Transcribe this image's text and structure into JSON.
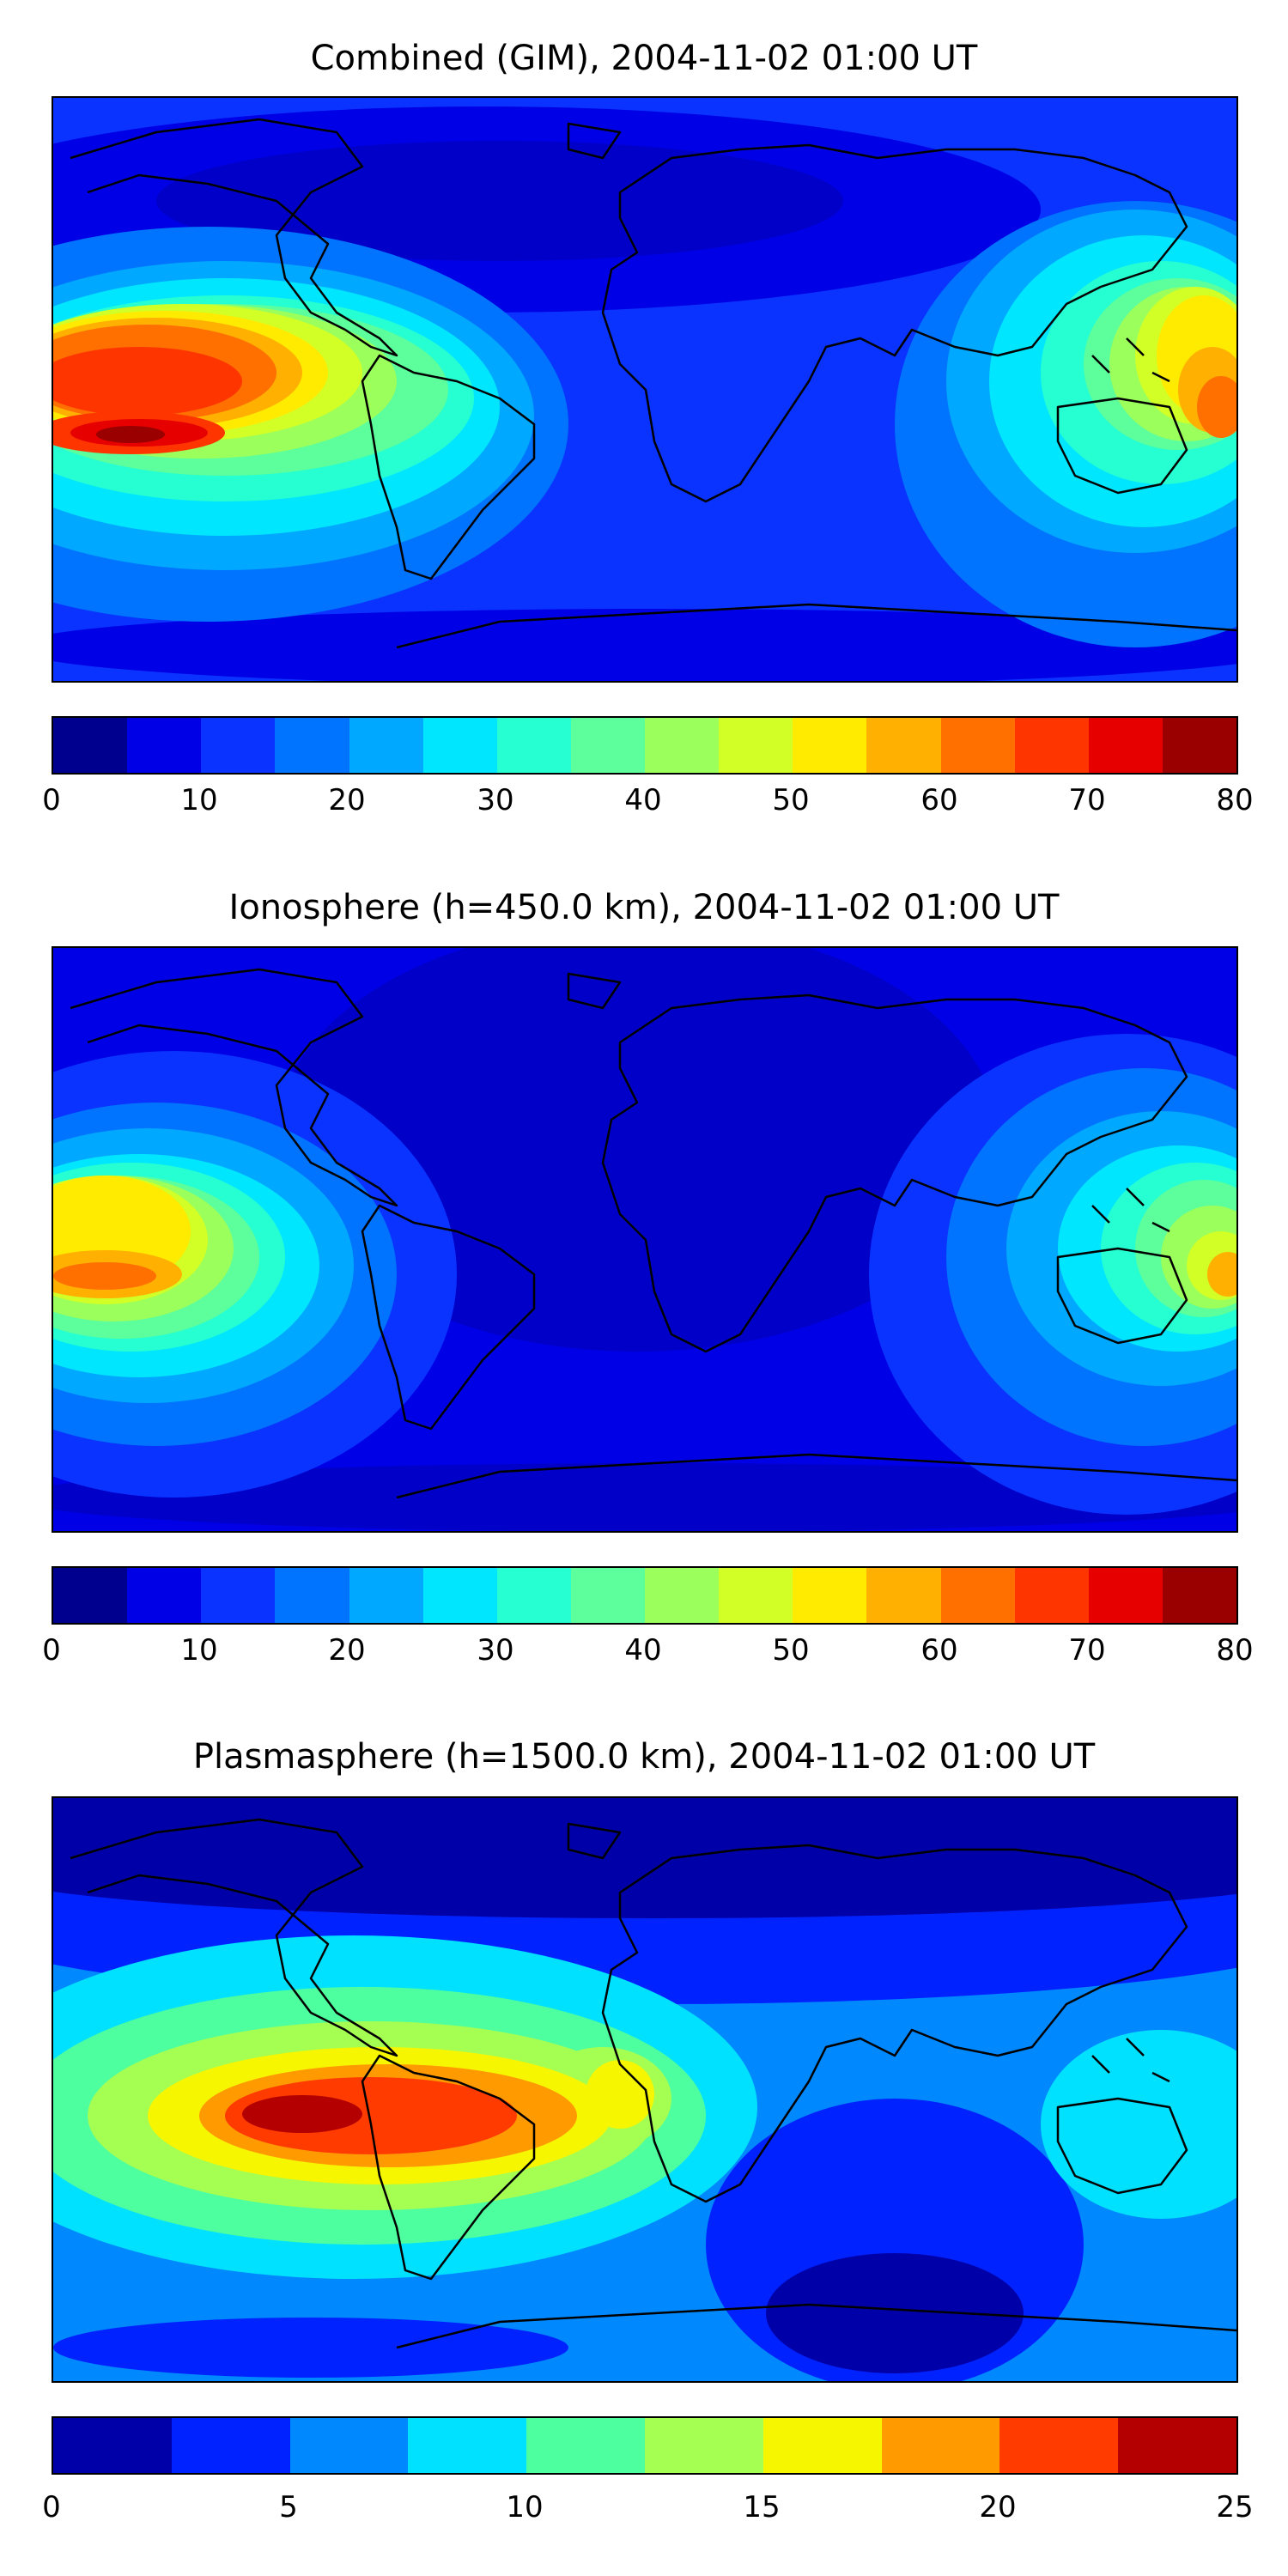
{
  "panels": [
    {
      "title": "Combined (GIM), 2004-11-02 01:00 UT",
      "colorbar": {
        "colors": [
          "#00008f",
          "#0000e6",
          "#0a33ff",
          "#0073ff",
          "#00a8ff",
          "#00e6ff",
          "#26ffd1",
          "#5cff9b",
          "#9bff5c",
          "#d1ff26",
          "#ffeb00",
          "#ffb000",
          "#ff7000",
          "#ff3500",
          "#e60000",
          "#9b0000"
        ],
        "ticks": [
          "0",
          "10",
          "20",
          "30",
          "40",
          "50",
          "60",
          "70",
          "80"
        ]
      }
    },
    {
      "title": "Ionosphere  (h=450.0 km), 2004-11-02 01:00 UT",
      "colorbar": {
        "colors": [
          "#00008f",
          "#0000e6",
          "#0a33ff",
          "#0073ff",
          "#00a8ff",
          "#00e6ff",
          "#26ffd1",
          "#5cff9b",
          "#9bff5c",
          "#d1ff26",
          "#ffeb00",
          "#ffb000",
          "#ff7000",
          "#ff3500",
          "#e60000",
          "#9b0000"
        ],
        "ticks": [
          "0",
          "10",
          "20",
          "30",
          "40",
          "50",
          "60",
          "70",
          "80"
        ]
      }
    },
    {
      "title": "Plasmasphere (h=1500.0 km), 2004-11-02 01:00 UT",
      "colorbar": {
        "colors": [
          "#0000a8",
          "#0022ff",
          "#0088ff",
          "#00e0ff",
          "#4dff9f",
          "#a5ff52",
          "#f6f600",
          "#ff9a00",
          "#ff3b00",
          "#b40000"
        ],
        "ticks": [
          "0",
          "5",
          "10",
          "15",
          "20",
          "25"
        ]
      }
    }
  ]
}
